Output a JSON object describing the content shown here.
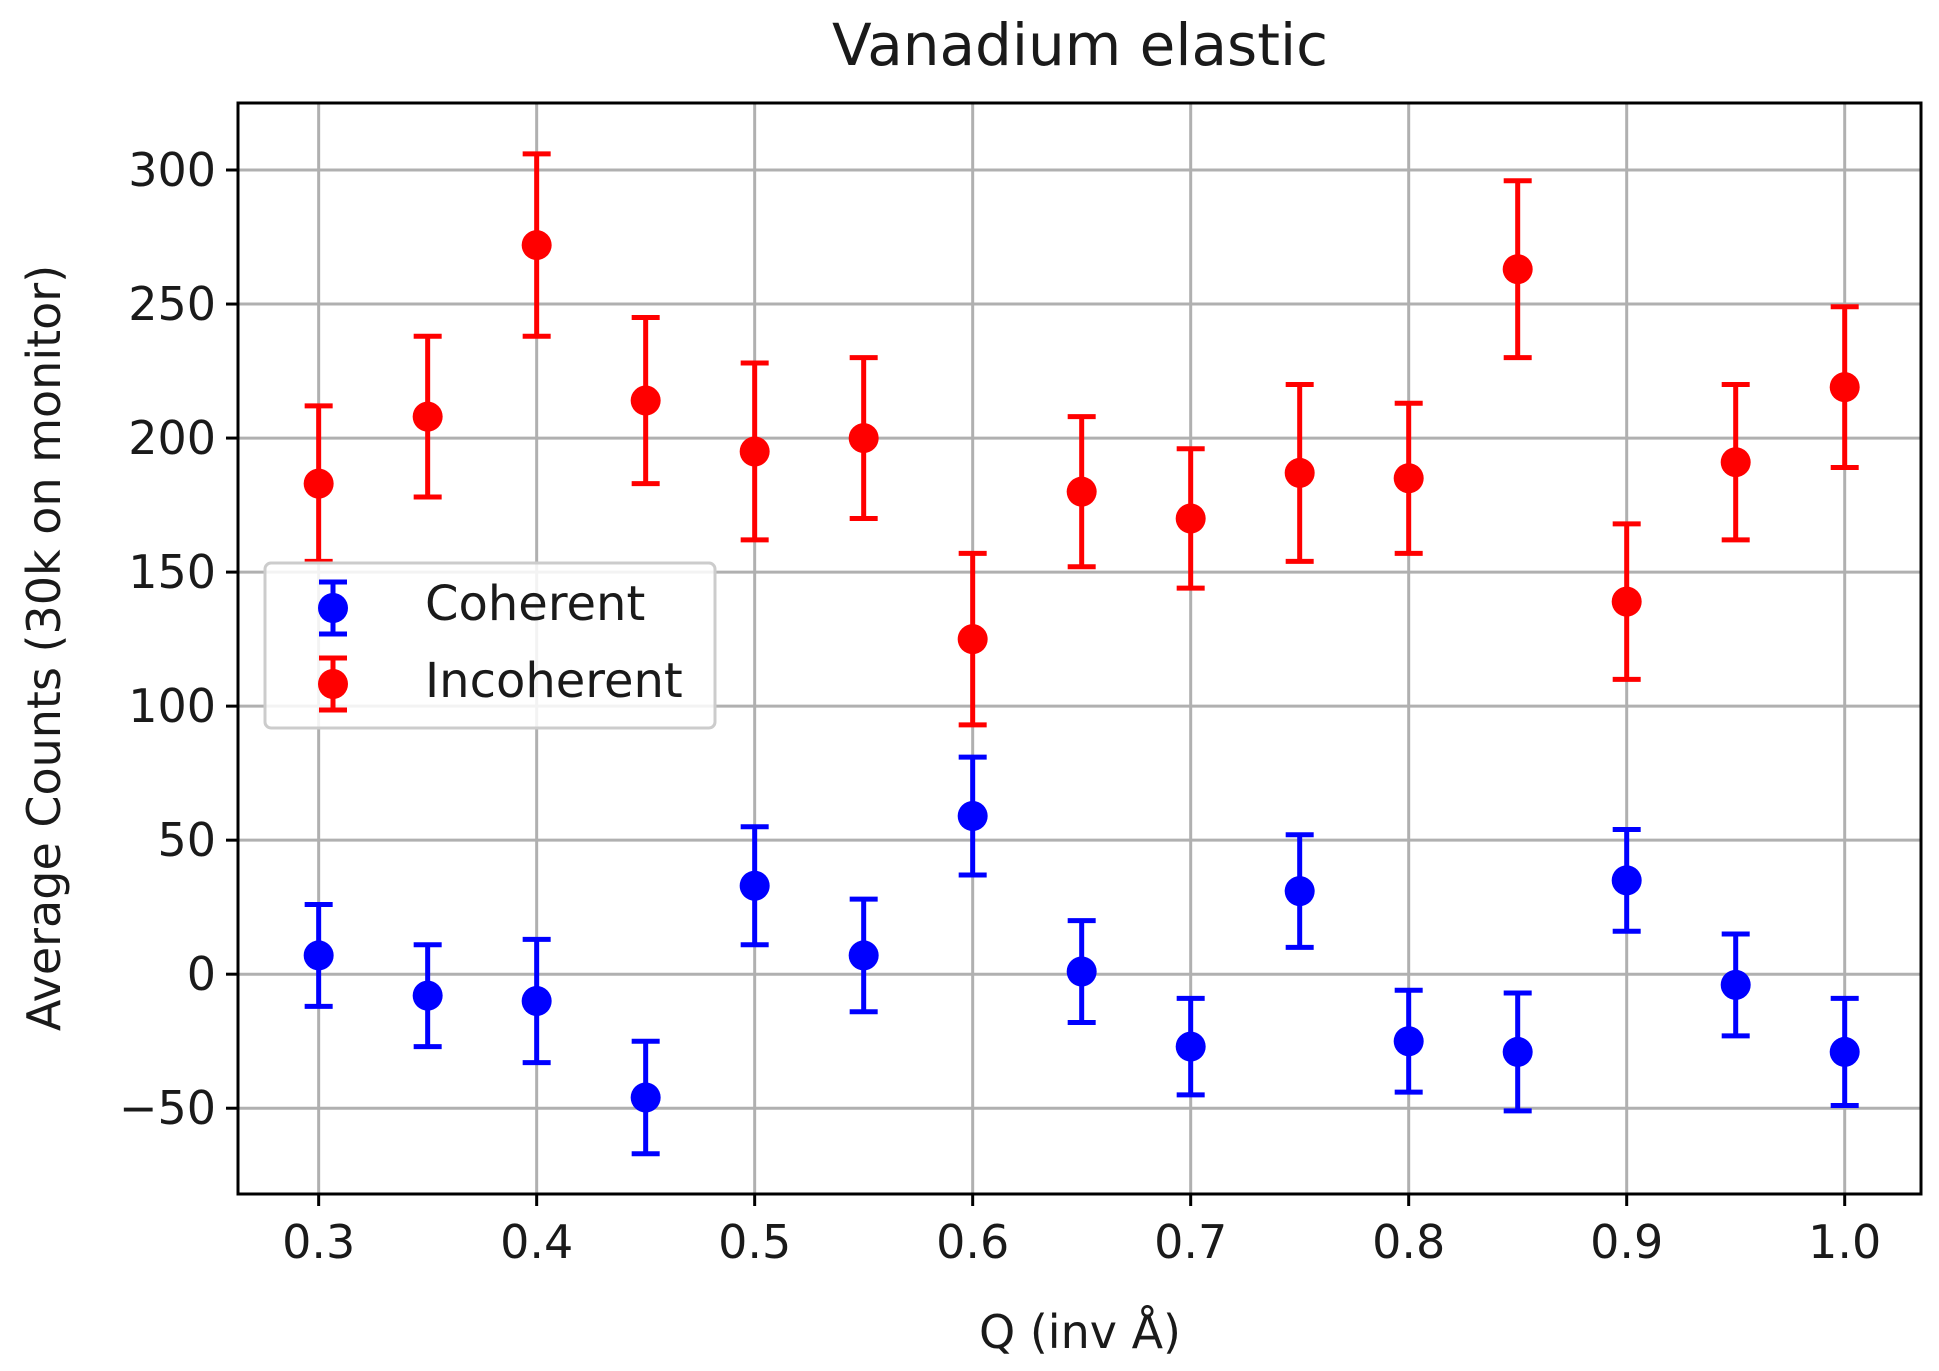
{
  "chart_data": {
    "type": "scatter",
    "title": "Vanadium elastic",
    "xlabel": "Q (inv Å)",
    "ylabel": "Average Counts (30k on monitor)",
    "xlim": [
      0.263,
      1.035
    ],
    "ylim": [
      -82,
      325
    ],
    "xticks": [
      0.3,
      0.4,
      0.5,
      0.6,
      0.7,
      0.8,
      0.9,
      1.0
    ],
    "xtick_labels": [
      "0.3",
      "0.4",
      "0.5",
      "0.6",
      "0.7",
      "0.8",
      "0.9",
      "1.0"
    ],
    "yticks": [
      -50,
      0,
      50,
      100,
      150,
      200,
      250,
      300
    ],
    "ytick_labels": [
      "−50",
      "0",
      "50",
      "100",
      "150",
      "200",
      "250",
      "300"
    ],
    "grid": true,
    "legend_position": "center-left",
    "series": [
      {
        "name": "Coherent",
        "color": "#0000ff",
        "x": [
          0.3,
          0.35,
          0.4,
          0.45,
          0.5,
          0.55,
          0.6,
          0.65,
          0.7,
          0.75,
          0.8,
          0.85,
          0.9,
          0.95,
          1.0
        ],
        "y": [
          7,
          -8,
          -10,
          -46,
          33,
          7,
          59,
          1,
          -27,
          31,
          -25,
          -29,
          35,
          -4,
          -29
        ],
        "yerr": [
          19,
          19,
          23,
          21,
          22,
          21,
          22,
          19,
          18,
          21,
          19,
          22,
          19,
          19,
          20
        ]
      },
      {
        "name": "Incoherent",
        "color": "#ff0000",
        "x": [
          0.3,
          0.35,
          0.4,
          0.45,
          0.5,
          0.55,
          0.6,
          0.65,
          0.7,
          0.75,
          0.8,
          0.85,
          0.9,
          0.95,
          1.0
        ],
        "y": [
          183,
          208,
          272,
          214,
          195,
          200,
          125,
          180,
          170,
          187,
          185,
          263,
          139,
          191,
          219
        ],
        "yerr": [
          29,
          30,
          34,
          31,
          33,
          30,
          32,
          28,
          26,
          33,
          28,
          33,
          29,
          29,
          30
        ]
      }
    ]
  }
}
